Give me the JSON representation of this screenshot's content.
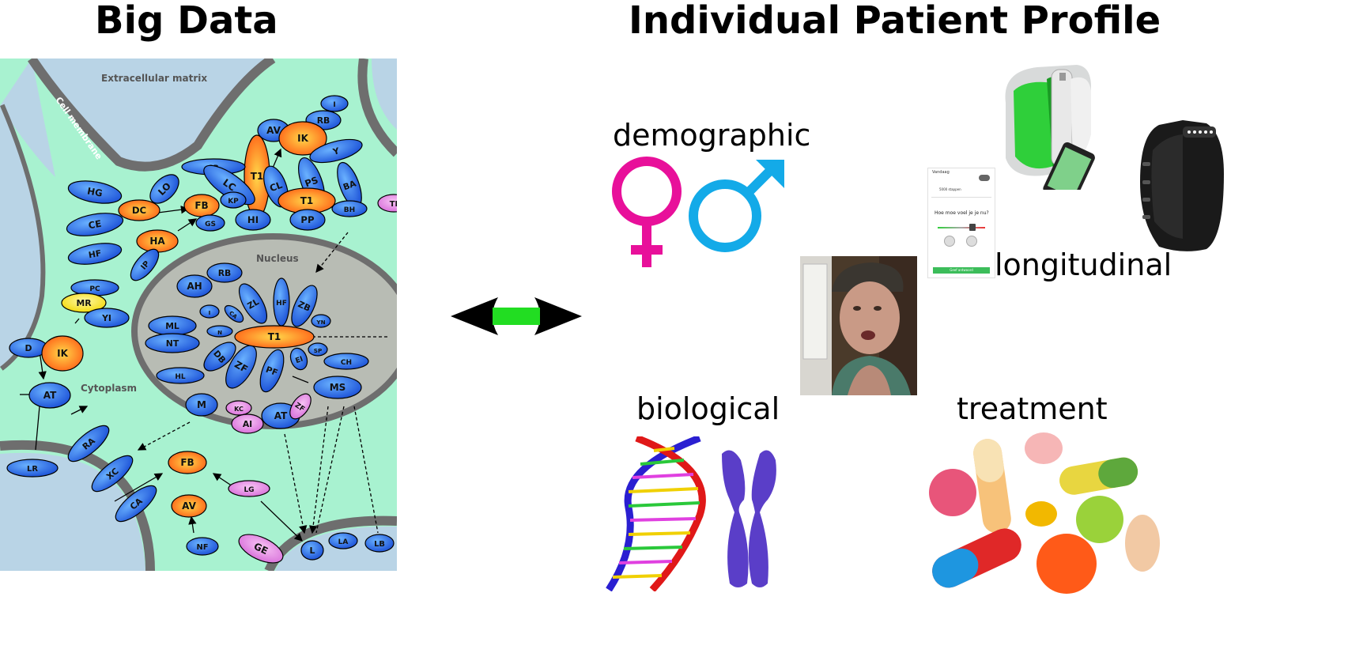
{
  "left_title": "Big Data",
  "right_title": "Individual Patient Profile",
  "pathway": {
    "regions": {
      "extracellular": "Extracellular matrix",
      "membrane": "Cell membrane",
      "nucleus": "Nucleus",
      "cytoplasm": "Cytoplasm"
    },
    "nodes": [
      {
        "label": "I",
        "color": "blue"
      },
      {
        "label": "RB",
        "color": "blue"
      },
      {
        "label": "AV",
        "color": "blue"
      },
      {
        "label": "IK",
        "color": "orange"
      },
      {
        "label": "Y",
        "color": "blue"
      },
      {
        "label": "T1",
        "color": "orange"
      },
      {
        "label": "CL",
        "color": "blue"
      },
      {
        "label": "PS",
        "color": "blue"
      },
      {
        "label": "BA",
        "color": "blue"
      },
      {
        "label": "T1",
        "color": "orange"
      },
      {
        "label": "BH",
        "color": "blue"
      },
      {
        "label": "PP",
        "color": "blue"
      },
      {
        "label": "HI",
        "color": "blue"
      },
      {
        "label": "SB",
        "color": "blue"
      },
      {
        "label": "LC",
        "color": "blue"
      },
      {
        "label": "HG",
        "color": "blue"
      },
      {
        "label": "LO",
        "color": "blue"
      },
      {
        "label": "DC",
        "color": "orange"
      },
      {
        "label": "CE",
        "color": "blue"
      },
      {
        "label": "FB",
        "color": "orange"
      },
      {
        "label": "KP",
        "color": "blue"
      },
      {
        "label": "GS",
        "color": "blue"
      },
      {
        "label": "HA",
        "color": "orange"
      },
      {
        "label": "HF",
        "color": "blue"
      },
      {
        "label": "IP",
        "color": "blue"
      },
      {
        "label": "PC",
        "color": "blue"
      },
      {
        "label": "MR",
        "color": "yellow"
      },
      {
        "label": "YI",
        "color": "blue"
      },
      {
        "label": "D",
        "color": "blue"
      },
      {
        "label": "IK",
        "color": "orange"
      },
      {
        "label": "AT",
        "color": "blue"
      },
      {
        "label": "LR",
        "color": "blue"
      },
      {
        "label": "RA",
        "color": "blue"
      },
      {
        "label": "XC",
        "color": "blue"
      },
      {
        "label": "CA",
        "color": "blue"
      },
      {
        "label": "FB",
        "color": "orange"
      },
      {
        "label": "AV",
        "color": "orange"
      },
      {
        "label": "NF",
        "color": "blue"
      },
      {
        "label": "LG",
        "color": "pink"
      },
      {
        "label": "GE",
        "color": "pink"
      },
      {
        "label": "L",
        "color": "blue"
      },
      {
        "label": "LA",
        "color": "blue"
      },
      {
        "label": "LB",
        "color": "blue"
      },
      {
        "label": "TI",
        "color": "pink"
      },
      {
        "label": "AH",
        "color": "blue"
      },
      {
        "label": "RB",
        "color": "blue"
      },
      {
        "label": "ML",
        "color": "blue"
      },
      {
        "label": "NT",
        "color": "blue"
      },
      {
        "label": "HL",
        "color": "blue"
      },
      {
        "label": "I",
        "color": "blue"
      },
      {
        "label": "N",
        "color": "blue"
      },
      {
        "label": "CA",
        "color": "blue"
      },
      {
        "label": "ZL",
        "color": "blue"
      },
      {
        "label": "HF",
        "color": "blue"
      },
      {
        "label": "ZB",
        "color": "blue"
      },
      {
        "label": "YN",
        "color": "blue"
      },
      {
        "label": "SP",
        "color": "blue"
      },
      {
        "label": "EI",
        "color": "blue"
      },
      {
        "label": "PF",
        "color": "blue"
      },
      {
        "label": "ZF",
        "color": "blue"
      },
      {
        "label": "DB",
        "color": "blue"
      },
      {
        "label": "T1",
        "color": "orange"
      },
      {
        "label": "CH",
        "color": "blue"
      },
      {
        "label": "MS",
        "color": "blue"
      },
      {
        "label": "M",
        "color": "blue"
      },
      {
        "label": "KC",
        "color": "pink"
      },
      {
        "label": "AI",
        "color": "pink"
      },
      {
        "label": "AT",
        "color": "blue"
      },
      {
        "label": "ZF",
        "color": "pink"
      }
    ]
  },
  "categories": {
    "demographic": "demographic",
    "longitudinal": "longitudinal",
    "biological": "biological",
    "treatment": "treatment"
  },
  "app_screen": {
    "header": "Vandaag",
    "question": "Hoe moe voel je je nu?",
    "steps": "5000 stappen",
    "button": "Geef antwoord"
  },
  "colors": {
    "female": "#e8109a",
    "male": "#13aae8",
    "arrow_bar": "#22dd22",
    "pathway_bg": "#a8f2d0",
    "node_blue": "#2f6ff0",
    "node_orange": "#ff7a1a"
  }
}
